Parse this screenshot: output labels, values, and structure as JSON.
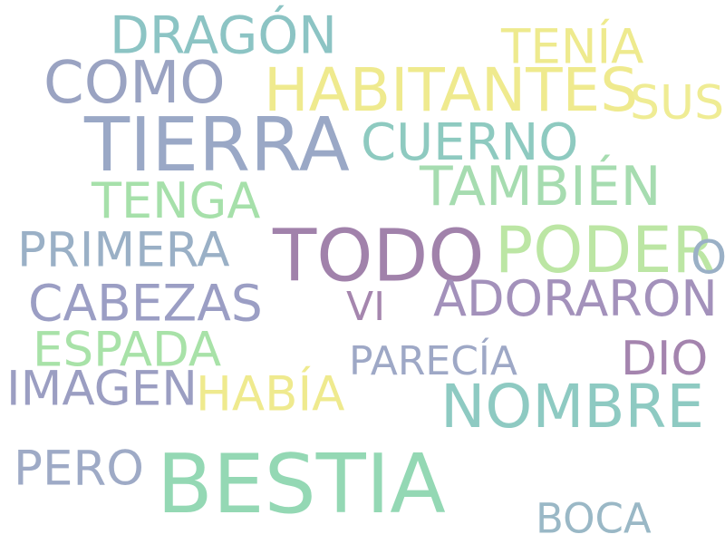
{
  "words": [
    {
      "text": "DRAGÓN",
      "color": "#8cc4c4"
    },
    {
      "text": "TENÍA",
      "color": "#eeea8e"
    },
    {
      "text": "COMO",
      "color": "#9aa3c2"
    },
    {
      "text": "HABITANTES",
      "color": "#efea8e"
    },
    {
      "text": "SUS",
      "color": "#efec94"
    },
    {
      "text": "TIERRA",
      "color": "#9aa8c6"
    },
    {
      "text": "CUERNO",
      "color": "#8ecac0"
    },
    {
      "text": "TAMBIÉN",
      "color": "#a6dcb0"
    },
    {
      "text": "TENGA",
      "color": "#a6e0aa"
    },
    {
      "text": "PRIMERA",
      "color": "#9ab0c6"
    },
    {
      "text": "TODO",
      "color": "#a182ab"
    },
    {
      "text": "PODER",
      "color": "#bce6a4"
    },
    {
      "text": "O",
      "color": "#9ab0c6"
    },
    {
      "text": "CABEZAS",
      "color": "#9b9ec4"
    },
    {
      "text": "VI",
      "color": "#a586ae"
    },
    {
      "text": "ADORARON",
      "color": "#a391bb"
    },
    {
      "text": "ESPADA",
      "color": "#a8e2a8"
    },
    {
      "text": "DIO",
      "color": "#a484ae"
    },
    {
      "text": "PARECÍA",
      "color": "#9ea8c6"
    },
    {
      "text": "IMAGEN",
      "color": "#9b9ec2"
    },
    {
      "text": "HABÍA",
      "color": "#efea8e"
    },
    {
      "text": "NOMBRE",
      "color": "#8ecac2"
    },
    {
      "text": "PERO",
      "color": "#9eaac6"
    },
    {
      "text": "BESTIA",
      "color": "#94d8b4"
    },
    {
      "text": "BOCA",
      "color": "#9ab8c6"
    }
  ]
}
